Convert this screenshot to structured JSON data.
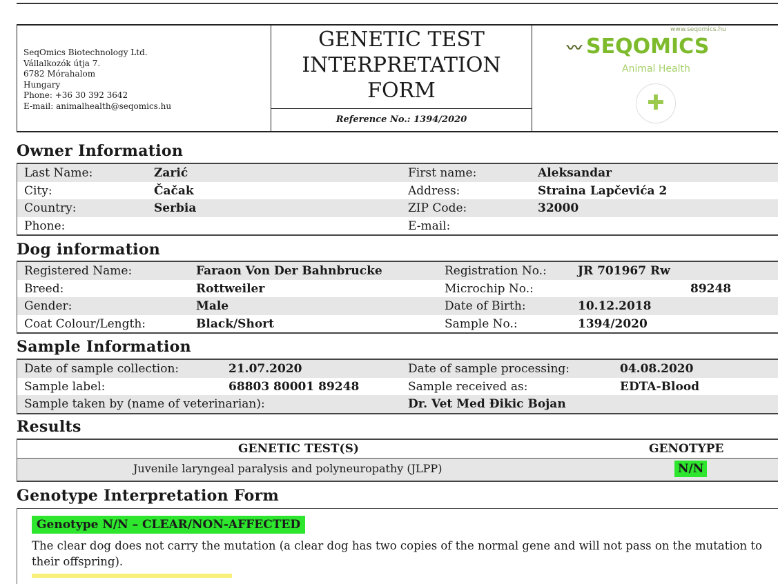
{
  "header": {
    "company": [
      "SeqOmics Biotechnology Ltd.",
      "Vállalkozók útja 7.",
      "6782 Mórahalom",
      "Hungary",
      "Phone: +36 30 392 3642",
      "E-mail: animalhealth@seqomics.hu"
    ],
    "title": [
      "GENETIC TEST",
      "INTERPRETATION",
      "FORM"
    ],
    "reference": "Reference No.: 1394/2020",
    "logo": {
      "brand": "SEQOMICS",
      "website": "www.seqomics.hu",
      "tagline": "Animal Health",
      "color": "#7dbb2c"
    }
  },
  "owner": {
    "heading": "Owner Information",
    "rows": [
      [
        "Last Name:",
        "Zarić",
        "First name:",
        "Aleksandar"
      ],
      [
        "City:",
        "Čačak",
        "Address:",
        "Straina Lapčevića 2"
      ],
      [
        "Country:",
        "Serbia",
        "ZIP Code:",
        "32000"
      ],
      [
        "Phone:",
        "",
        "E-mail:",
        ""
      ]
    ]
  },
  "dog": {
    "heading": "Dog information",
    "rows": [
      [
        "Registered Name:",
        "Faraon Von Der Bahnbrucke",
        "Registration No.:",
        "JR 701967 Rw"
      ],
      [
        "Breed:",
        "Rottweiler",
        "Microchip No.:",
        "89248"
      ],
      [
        "Gender:",
        "Male",
        "Date of Birth:",
        "10.12.2018"
      ],
      [
        "Coat Colour/Length:",
        "Black/Short",
        "Sample No.:",
        "1394/2020"
      ]
    ]
  },
  "sample": {
    "heading": "Sample Information",
    "rows": [
      [
        "Date of sample collection:",
        "21.07.2020",
        "Date of sample processing:",
        "04.08.2020"
      ],
      [
        "Sample label:",
        "68803 80001 89248",
        "Sample received as:",
        "EDTA-Blood"
      ],
      [
        "Sample taken by (name of veterinarian):",
        "",
        "Dr. Vet Med Đikic Bojan",
        ""
      ]
    ]
  },
  "results": {
    "heading": "Results",
    "col_test": "GENETIC TEST(S)",
    "col_genotype": "GENOTYPE",
    "test": "Juvenile laryngeal paralysis and polyneuropathy (JLPP)",
    "genotype": "N/N",
    "highlight": "#2de62d"
  },
  "interpretation": {
    "heading": "Genotype Interpretation Form",
    "tag": "Genotype N/N – CLEAR/NON-AFFECTED",
    "text": "The clear dog does not carry the mutation (a clear dog has two copies of the normal gene and will not pass on the mutation to their offspring)."
  }
}
